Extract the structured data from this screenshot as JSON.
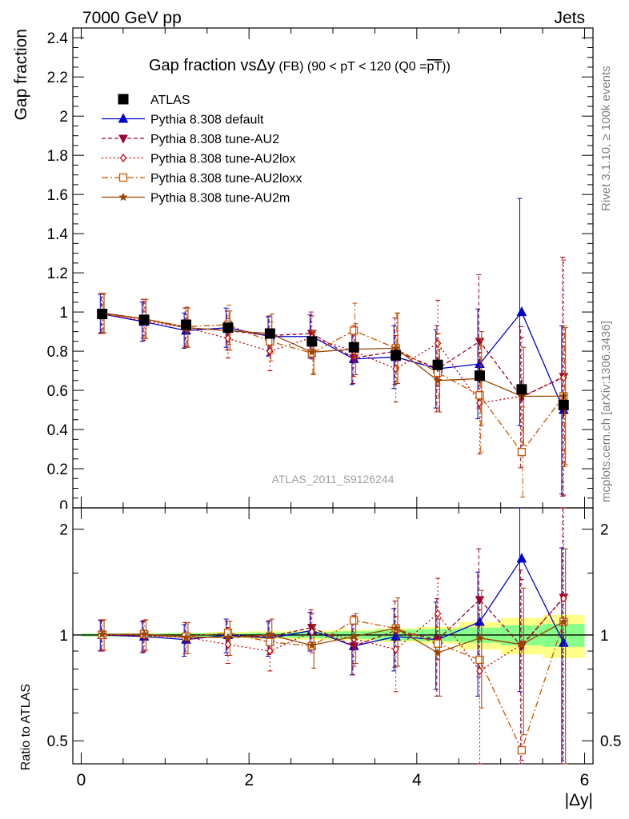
{
  "header": {
    "left": "7000 GeV pp",
    "right": "Jets"
  },
  "side": {
    "rivet": "Rivet 3.1.10, ≥ 100k events",
    "mcplots": "mcplots.cern.ch [arXiv:1306.3436]"
  },
  "chart_data": [
    {
      "type": "scatter",
      "panel": "main",
      "title": "Gap fraction vsΔy (FB) (90 < pT < 120 (Q0 =pT))",
      "title_parts": [
        "Gap fraction vs",
        "Δy",
        " (FB) ",
        "(90 < pT < 120 (Q0 =",
        "pT",
        "))"
      ],
      "ylabel": "Gap fraction",
      "watermark": "ATLAS_2011_S9126244",
      "xlim": [
        -0.1,
        6.1
      ],
      "ylim": [
        0,
        2.45
      ],
      "yticks": [
        0.2,
        0.4,
        0.6,
        0.8,
        1,
        1.2,
        1.4,
        1.6,
        1.8,
        2,
        2.2,
        2.4
      ],
      "ytick_labels": [
        "0.2",
        "0.4",
        "0.6",
        "0.8",
        "1",
        "1.2",
        "1.4",
        "1.6",
        "1.8",
        "2",
        "2.2",
        "2.4"
      ],
      "y0_label": "0",
      "x": [
        0.25,
        0.75,
        1.25,
        1.75,
        2.25,
        2.75,
        3.25,
        3.75,
        4.25,
        4.75,
        5.25,
        5.75
      ],
      "series": [
        {
          "name": "ATLAS",
          "color": "#000000",
          "style": "data",
          "values": [
            0.99,
            0.96,
            0.935,
            0.92,
            0.89,
            0.85,
            0.82,
            0.78,
            0.73,
            0.675,
            0.605,
            0.525
          ],
          "errors": [
            0.01,
            0.01,
            0.01,
            0.01,
            0.015,
            0.02,
            0.02,
            0.03,
            0.035,
            0.04,
            0.05,
            0.06
          ]
        },
        {
          "name": "Pythia 8.308 default",
          "color": "#0000cc",
          "style": "solid-triangle",
          "values": [
            0.99,
            0.95,
            0.905,
            0.92,
            0.875,
            0.875,
            0.76,
            0.77,
            0.71,
            0.735,
            1.0,
            0.5
          ],
          "errors": [
            0.1,
            0.1,
            0.09,
            0.1,
            0.1,
            0.11,
            0.13,
            0.16,
            0.2,
            0.28,
            0.58,
            0.43
          ]
        },
        {
          "name": "Pythia 8.308 tune-AU2",
          "color": "#990033",
          "style": "dashed-down",
          "values": [
            0.995,
            0.965,
            0.92,
            0.905,
            0.88,
            0.89,
            0.765,
            0.8,
            0.71,
            0.85,
            0.565,
            0.67
          ],
          "errors": [
            0.1,
            0.1,
            0.1,
            0.1,
            0.1,
            0.11,
            0.13,
            0.17,
            0.22,
            0.34,
            0.36,
            0.61
          ]
        },
        {
          "name": "Pythia 8.308 tune-AU2lox",
          "color": "#cc0000",
          "style": "dotted-diamond",
          "values": [
            0.99,
            0.955,
            0.92,
            0.865,
            0.8,
            0.87,
            0.8,
            0.71,
            0.84,
            0.535,
            0.57,
            0.665
          ],
          "errors": [
            0.1,
            0.1,
            0.1,
            0.1,
            0.1,
            0.11,
            0.13,
            0.17,
            0.22,
            0.26,
            0.3,
            0.6
          ]
        },
        {
          "name": "Pythia 8.308 tune-AU2loxx",
          "color": "#cc5500",
          "style": "dashdot-square",
          "values": [
            0.99,
            0.965,
            0.925,
            0.935,
            0.85,
            0.79,
            0.905,
            0.815,
            0.69,
            0.575,
            0.285,
            0.57
          ],
          "errors": [
            0.1,
            0.1,
            0.1,
            0.1,
            0.1,
            0.11,
            0.14,
            0.18,
            0.2,
            0.29,
            0.23,
            0.36
          ]
        },
        {
          "name": "Pythia 8.308 tune-AU2m",
          "color": "#994400",
          "style": "solid-star",
          "values": [
            0.995,
            0.965,
            0.92,
            0.905,
            0.89,
            0.795,
            0.81,
            0.815,
            0.65,
            0.66,
            0.57,
            0.57
          ],
          "errors": [
            0.1,
            0.1,
            0.1,
            0.1,
            0.1,
            0.11,
            0.13,
            0.18,
            0.16,
            0.24,
            0.25,
            0.35
          ]
        }
      ]
    },
    {
      "type": "scatter",
      "panel": "ratio",
      "ylabel": "Ratio to ATLAS",
      "xlabel": "|Δy|",
      "xlim": [
        -0.1,
        6.1
      ],
      "ylim": [
        0.43,
        2.3
      ],
      "log_y": true,
      "yticks": [
        0.5,
        1,
        2
      ],
      "ytick_labels": [
        "0.5",
        "1",
        "2"
      ],
      "xticks": [
        0,
        2,
        4,
        6
      ],
      "xtick_labels": [
        "0",
        "2",
        "4",
        "6"
      ],
      "x": [
        0.25,
        0.75,
        1.25,
        1.75,
        2.25,
        2.75,
        3.25,
        3.75,
        4.25,
        4.75,
        5.25,
        5.75
      ],
      "band_edges": [
        0,
        0.5,
        1,
        1.5,
        2,
        2.5,
        3,
        3.5,
        4,
        4.5,
        5,
        5.5,
        6
      ],
      "band_stat": [
        0.01,
        0.01,
        0.012,
        0.012,
        0.015,
        0.02,
        0.025,
        0.035,
        0.04,
        0.05,
        0.065,
        0.075
      ],
      "band_total": [
        0.01,
        0.012,
        0.015,
        0.02,
        0.025,
        0.03,
        0.035,
        0.045,
        0.055,
        0.09,
        0.12,
        0.14
      ],
      "series": [
        {
          "name": "Pythia 8.308 default",
          "color": "#0000cc",
          "values": [
            1.0,
            0.99,
            0.97,
            1.0,
            0.98,
            1.03,
            0.93,
            0.99,
            0.97,
            1.09,
            1.65,
            0.95
          ],
          "errors": [
            0.1,
            0.1,
            0.1,
            0.11,
            0.11,
            0.13,
            0.16,
            0.2,
            0.27,
            0.42,
            0.96,
            0.82
          ]
        },
        {
          "name": "Pythia 8.308 tune-AU2",
          "color": "#990033",
          "values": [
            1.005,
            1.0,
            0.985,
            0.985,
            0.99,
            1.05,
            0.93,
            1.03,
            0.97,
            1.26,
            0.93,
            1.28
          ],
          "errors": [
            0.1,
            0.1,
            0.1,
            0.11,
            0.11,
            0.13,
            0.16,
            0.22,
            0.3,
            0.5,
            0.6,
            1.16
          ]
        },
        {
          "name": "Pythia 8.308 tune-AU2lox",
          "color": "#cc0000",
          "values": [
            1.0,
            0.995,
            0.985,
            0.94,
            0.9,
            1.02,
            0.975,
            0.91,
            1.15,
            0.79,
            0.94,
            1.27
          ],
          "errors": [
            0.1,
            0.1,
            0.1,
            0.11,
            0.11,
            0.13,
            0.16,
            0.22,
            0.3,
            0.39,
            0.5,
            1.14
          ]
        },
        {
          "name": "Pythia 8.308 tune-AU2loxx",
          "color": "#cc5500",
          "values": [
            1.0,
            1.005,
            0.99,
            1.015,
            0.955,
            0.93,
            1.1,
            1.045,
            0.945,
            0.85,
            0.47,
            1.09
          ]
        },
        {
          "name": "Pythia 8.308 tune-AU2m",
          "color": "#994400",
          "values": [
            1.005,
            1.005,
            0.985,
            0.985,
            1.0,
            0.935,
            0.99,
            1.045,
            0.89,
            0.98,
            0.94,
            1.09
          ],
          "errors": [
            0.1,
            0.1,
            0.1,
            0.11,
            0.11,
            0.13,
            0.16,
            0.23,
            0.22,
            0.36,
            0.42,
            0.67
          ]
        }
      ]
    }
  ]
}
